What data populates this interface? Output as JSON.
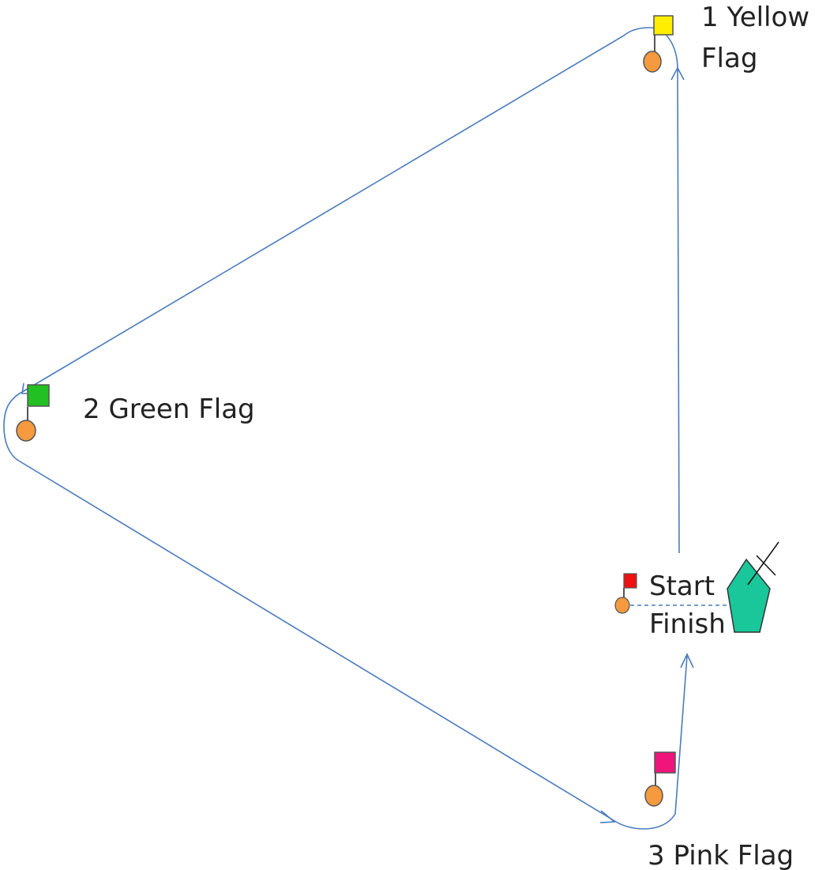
{
  "marks": [
    {
      "label_lines": [
        "1 Yellow",
        "Flag"
      ]
    },
    {
      "label": "2 Green Flag"
    },
    {
      "label": "3 Pink Flag"
    }
  ],
  "start_finish": {
    "start": "Start",
    "finish": "Finish"
  }
}
